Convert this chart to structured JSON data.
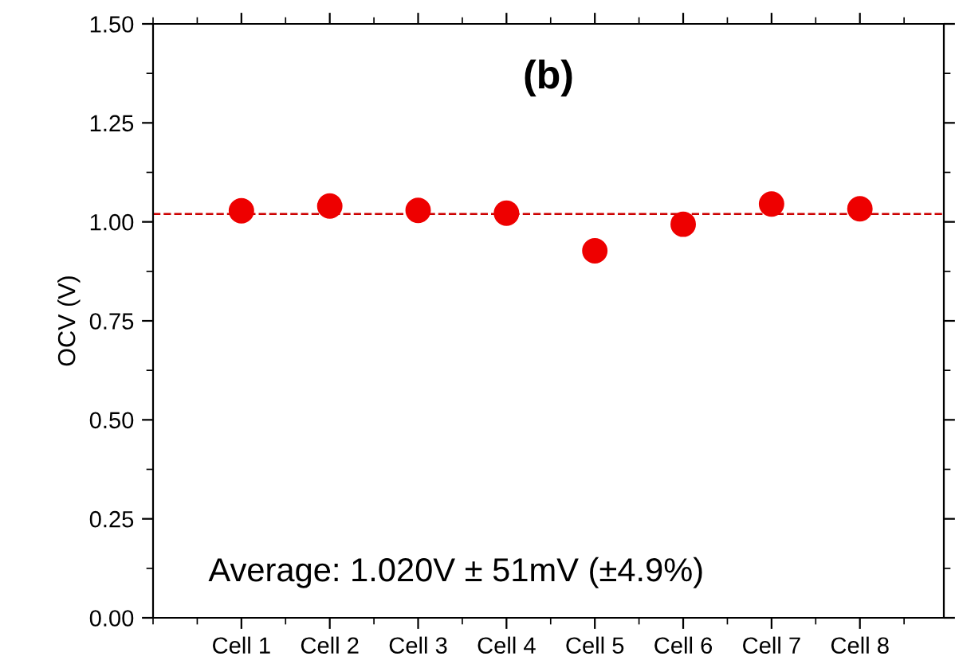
{
  "chart_data": {
    "type": "scatter",
    "title": "(b)",
    "ylabel": "OCV (V)",
    "categories": [
      "Cell 1",
      "Cell 2",
      "Cell 3",
      "Cell 4",
      "Cell 5",
      "Cell 6",
      "Cell 7",
      "Cell 8"
    ],
    "series": [
      {
        "color": "#ee0000",
        "values": [
          1.028,
          1.04,
          1.029,
          1.022,
          0.927,
          0.994,
          1.045,
          1.033
        ]
      }
    ],
    "marker": "circle",
    "ylim": [
      0,
      1.5
    ],
    "yticks": [
      {
        "value": 0,
        "label": "0.00"
      },
      {
        "value": 0.25,
        "label": "0.25"
      },
      {
        "value": 0.5,
        "label": "0.50"
      },
      {
        "value": 0.75,
        "label": "0.75"
      },
      {
        "value": 1,
        "label": "1.00"
      },
      {
        "value": 1.25,
        "label": "1.25"
      },
      {
        "value": 1.5,
        "label": "1.50"
      }
    ],
    "ref_lines": [
      {
        "axis": "y",
        "value": 1.02,
        "color": "#cc0000",
        "line_style": "dashed"
      }
    ],
    "annotations": [
      "Average: 1.020V ± 51mV (±4.9%)"
    ],
    "grid": false,
    "legend": false
  }
}
